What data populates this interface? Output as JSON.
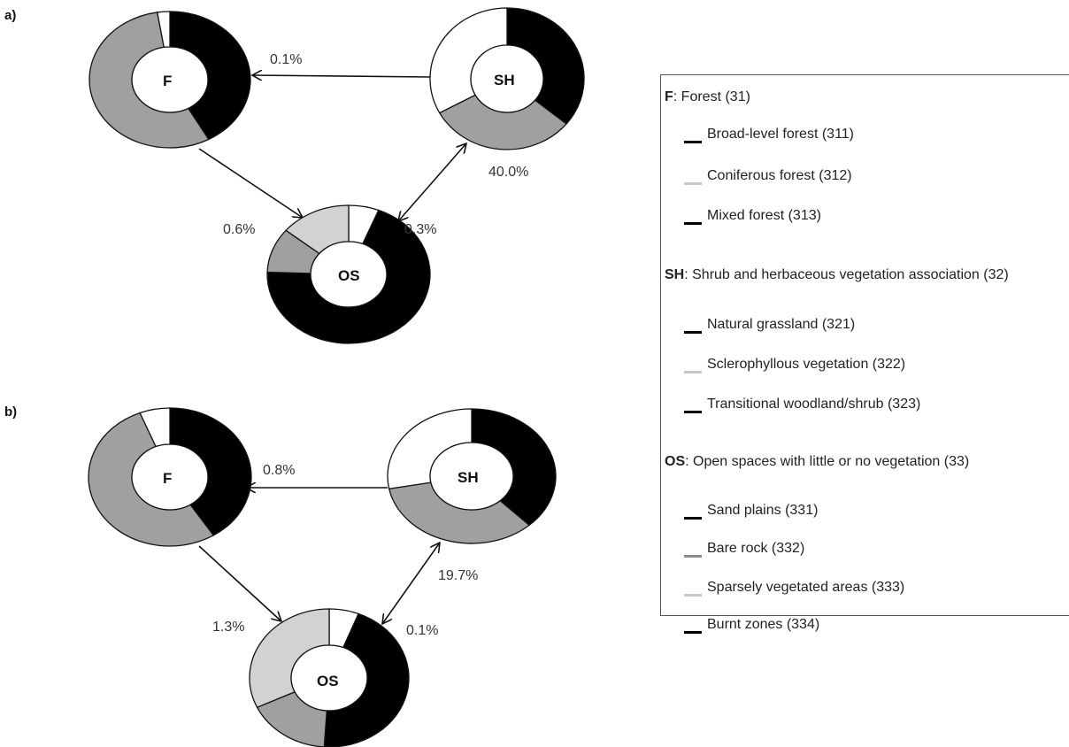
{
  "panels": [
    {
      "label": "a)",
      "nodes": [
        {
          "id": "F",
          "label": "F",
          "segments": [
            {
              "category": "Broad-level forest (311)",
              "share": 0.42,
              "color": "#000000"
            },
            {
              "category": "Coniferous forest (312)",
              "share": 0.555,
              "color": "#a0a0a0"
            },
            {
              "category": "Mixed forest (313)",
              "share": 0.025,
              "color": "#ffffff"
            }
          ]
        },
        {
          "id": "SH",
          "label": "SH",
          "segments": [
            {
              "category": "Natural grassland (321)",
              "share": 0.36,
              "color": "#000000"
            },
            {
              "category": "Sclerophyllous vegetation (322)",
              "share": 0.31,
              "color": "#a0a0a0"
            },
            {
              "category": "Transitional woodland/shrub (323)",
              "share": 0.33,
              "color": "#ffffff"
            }
          ]
        },
        {
          "id": "OS",
          "label": "OS",
          "segments": [
            {
              "category": "Sand plains (331)",
              "share": 0.06,
              "color": "#ffffff"
            },
            {
              "category": "Burnt zones (334)",
              "share": 0.695,
              "color": "#000000"
            },
            {
              "category": "Bare rock (332)",
              "share": 0.105,
              "color": "#a0a0a0"
            },
            {
              "category": "Sparsely vegetated areas (333)",
              "share": 0.14,
              "color": "#d2d2d2"
            }
          ]
        }
      ],
      "flows": [
        {
          "from": "SH",
          "to": "F",
          "label": "0.1%"
        },
        {
          "from": "F",
          "to": "OS",
          "label": "0.6%"
        },
        {
          "from": "SH",
          "to": "OS",
          "label": "0.3%",
          "bidirectional": true
        },
        {
          "from": "OS",
          "to": "SH",
          "label": "40.0%"
        }
      ]
    },
    {
      "label": "b)",
      "nodes": [
        {
          "id": "F",
          "label": "F",
          "segments": [
            {
              "category": "Broad-level forest (311)",
              "share": 0.41,
              "color": "#000000"
            },
            {
              "category": "Coniferous forest (312)",
              "share": 0.53,
              "color": "#a0a0a0"
            },
            {
              "category": "Mixed forest (313)",
              "share": 0.06,
              "color": "#ffffff"
            }
          ]
        },
        {
          "id": "SH",
          "label": "SH",
          "segments": [
            {
              "category": "Natural grassland (321)",
              "share": 0.38,
              "color": "#000000"
            },
            {
              "category": "Sclerophyllous vegetation (322)",
              "share": 0.34,
              "color": "#a0a0a0"
            },
            {
              "category": "Transitional woodland/shrub (323)",
              "share": 0.28,
              "color": "#ffffff"
            }
          ]
        },
        {
          "id": "OS",
          "label": "OS",
          "segments": [
            {
              "category": "Sand plains (331)",
              "share": 0.06,
              "color": "#ffffff"
            },
            {
              "category": "Burnt zones (334)",
              "share": 0.45,
              "color": "#000000"
            },
            {
              "category": "Bare rock (332)",
              "share": 0.17,
              "color": "#a0a0a0"
            },
            {
              "category": "Sparsely vegetated areas (333)",
              "share": 0.32,
              "color": "#d2d2d2"
            }
          ]
        }
      ],
      "flows": [
        {
          "from": "SH",
          "to": "F",
          "label": "0.8%"
        },
        {
          "from": "F",
          "to": "OS",
          "label": "1.3%"
        },
        {
          "from": "SH",
          "to": "OS",
          "label": "0.1%",
          "bidirectional": true
        },
        {
          "from": "OS",
          "to": "SH",
          "label": "19.7%"
        }
      ]
    }
  ],
  "legend": {
    "groups": [
      {
        "code": "F",
        "name": ": Forest (31)",
        "items": [
          {
            "label": "Broad-level forest (311)",
            "color": "#000000"
          },
          {
            "label": "Coniferous forest (312)",
            "color": "#c8c8c8"
          },
          {
            "label": "Mixed forest (313)",
            "color": "#000000"
          }
        ]
      },
      {
        "code": "SH",
        "name": ": Shrub and herbaceous vegetation association (32)",
        "items": [
          {
            "label": "Natural grassland (321)",
            "color": "#000000"
          },
          {
            "label": "Sclerophyllous vegetation (322)",
            "color": "#c8c8c8"
          },
          {
            "label": "Transitional woodland/shrub (323)",
            "color": "#000000"
          }
        ]
      },
      {
        "code": "OS",
        "name": ": Open spaces with little or no vegetation (33)",
        "items": [
          {
            "label": "Sand plains (331)",
            "color": "#000000"
          },
          {
            "label": "Bare rock (332)",
            "color": "#8c8c8c"
          },
          {
            "label": "Sparsely vegetated areas (333)",
            "color": "#c8c8c8"
          },
          {
            "label": "Burnt zones (334)",
            "color": "#000000"
          }
        ]
      }
    ]
  }
}
